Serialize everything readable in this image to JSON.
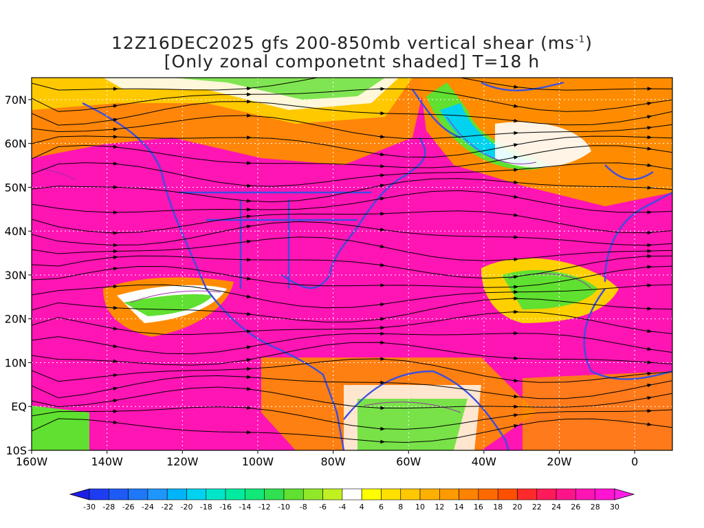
{
  "title": {
    "line1_pre": "12Z16DEC2025 gfs 200-850mb vertical shear (ms",
    "line1_sup": "-1",
    "line1_post": ")",
    "line2": "[Only zonal componetnt shaded] T=18 h"
  },
  "map": {
    "lon_range": [
      -160,
      10
    ],
    "lat_range": [
      -10,
      75
    ],
    "lat_ticks": [
      {
        "value": 70,
        "label": "70N"
      },
      {
        "value": 60,
        "label": "60N"
      },
      {
        "value": 50,
        "label": "50N"
      },
      {
        "value": 40,
        "label": "40N"
      },
      {
        "value": 30,
        "label": "30N"
      },
      {
        "value": 20,
        "label": "20N"
      },
      {
        "value": 10,
        "label": "10N"
      },
      {
        "value": 0,
        "label": "EQ"
      },
      {
        "value": -10,
        "label": "10S"
      }
    ],
    "lon_ticks": [
      {
        "value": -160,
        "label": "160W"
      },
      {
        "value": -140,
        "label": "140W"
      },
      {
        "value": -120,
        "label": "120W"
      },
      {
        "value": -100,
        "label": "100W"
      },
      {
        "value": -80,
        "label": "80W"
      },
      {
        "value": -60,
        "label": "60W"
      },
      {
        "value": -40,
        "label": "40W"
      },
      {
        "value": -20,
        "label": "20W"
      },
      {
        "value": 0,
        "label": "0"
      }
    ],
    "grid": true,
    "coastline_color": "#3a4fe0",
    "streamline_color": "#000000",
    "contour_color": "#9b2ea8"
  },
  "colorbar": {
    "labels": [
      "-30",
      "-28",
      "-26",
      "-24",
      "-22",
      "-20",
      "-18",
      "-16",
      "-14",
      "-12",
      "-10",
      "-8",
      "-6",
      "-4",
      "4",
      "6",
      "8",
      "10",
      "12",
      "14",
      "16",
      "18",
      "20",
      "22",
      "24",
      "26",
      "28",
      "30"
    ],
    "colors": [
      "#1e1ee8",
      "#1e3cf0",
      "#1e5af5",
      "#1e78f8",
      "#1e96fa",
      "#00b4fa",
      "#00d2f0",
      "#00e6c8",
      "#00eba0",
      "#10e878",
      "#30e050",
      "#60e030",
      "#90e828",
      "#c0f020",
      "#ffffff",
      "#ffff00",
      "#ffe000",
      "#ffc800",
      "#ffb000",
      "#ff9a00",
      "#ff8200",
      "#ff6a00",
      "#ff5000",
      "#ff2a2a",
      "#ff1a5a",
      "#ff148a",
      "#ff14b4",
      "#ff14d2",
      "#ff1ee6"
    ]
  }
}
